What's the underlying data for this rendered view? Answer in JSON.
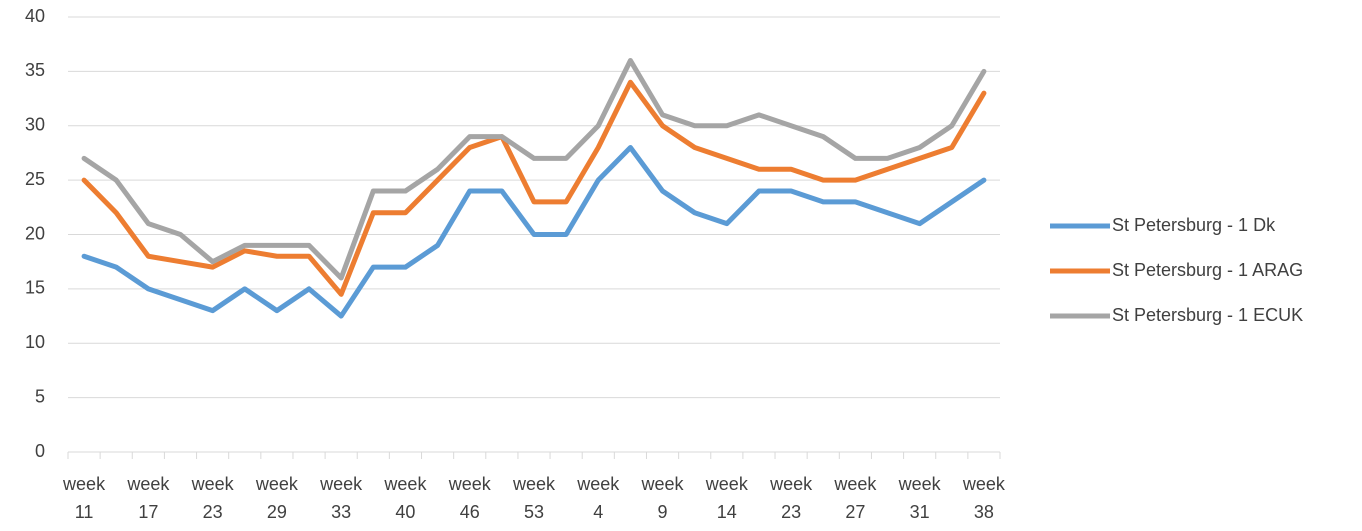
{
  "chart_data": {
    "type": "line",
    "categories": [
      "week 11",
      null,
      "week 17",
      null,
      "week 23",
      null,
      "week 29",
      null,
      "week 33",
      null,
      "week 40",
      null,
      "week 46",
      null,
      "week 53",
      null,
      "week 4",
      null,
      "week 9",
      null,
      "week 14",
      null,
      "week 23",
      null,
      "week 27",
      null,
      "week 31",
      null,
      "week 38"
    ],
    "series": [
      {
        "name": "St Petersburg - 1 Dk",
        "color": "#5b9bd5",
        "values": [
          18,
          17,
          15,
          14,
          13,
          15,
          13,
          15,
          12.5,
          17,
          17,
          19,
          24,
          24,
          20,
          20,
          25,
          28,
          24,
          22,
          21,
          24,
          24,
          23,
          23,
          22,
          21,
          23,
          25
        ]
      },
      {
        "name": "St Petersburg - 1 ARAG",
        "color": "#ed7d31",
        "values": [
          25,
          22,
          18,
          17.5,
          17,
          18.5,
          18,
          18,
          14.5,
          22,
          22,
          25,
          28,
          29,
          23,
          23,
          28,
          34,
          30,
          28,
          27,
          26,
          26,
          25,
          25,
          26,
          27,
          28,
          33
        ]
      },
      {
        "name": "St Petersburg - 1 ECUK",
        "color": "#a5a5a5",
        "values": [
          27,
          25,
          21,
          20,
          17.5,
          19,
          19,
          19,
          16,
          24,
          24,
          26,
          29,
          29,
          27,
          27,
          30,
          36,
          31,
          30,
          30,
          31,
          30,
          29,
          27,
          27,
          28,
          30,
          35
        ]
      }
    ],
    "ylim": [
      0,
      40
    ],
    "yticks": [
      0,
      5,
      10,
      15,
      20,
      25,
      30,
      35,
      40
    ],
    "grid": true,
    "legend": "right"
  }
}
